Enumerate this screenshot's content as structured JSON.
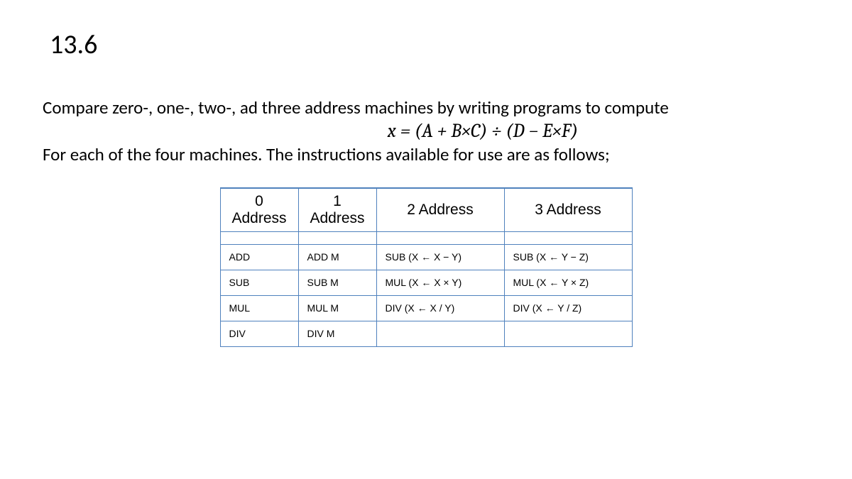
{
  "title": "13.6",
  "para1": "Compare zero-, one-, two-, ad three address machines by writing programs to compute",
  "equation": "x = (A + B×C) ÷ (D − E×F)",
  "para2": "For each of the four machines. The instructions available for use are as follows;",
  "table": {
    "headers": [
      "0 Address",
      "1 Address",
      "2 Address",
      "3 Address"
    ],
    "rows": [
      [
        "ADD",
        "ADD M",
        "SUB (X ← X − Y)",
        "SUB (X ← Y − Z)"
      ],
      [
        "SUB",
        "SUB M",
        "MUL (X ← X × Y)",
        "MUL (X ← Y × Z)"
      ],
      [
        "MUL",
        "MUL M",
        "DIV (X ← X / Y)",
        "DIV (X ← Y / Z)"
      ],
      [
        "DIV",
        "DIV M",
        "",
        ""
      ]
    ],
    "border_color": "#4f81bd",
    "header_fontsize": 21,
    "cell_fontsize": 14
  },
  "colors": {
    "background": "#ffffff",
    "text": "#000000"
  }
}
